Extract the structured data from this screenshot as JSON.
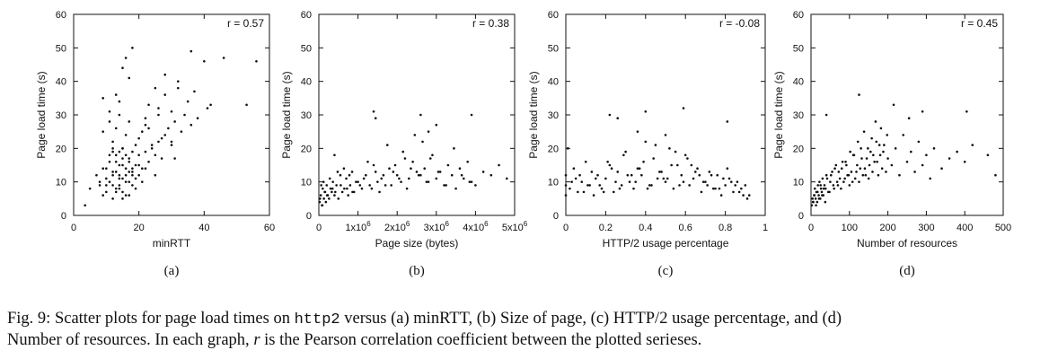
{
  "caption": {
    "prefix": "Fig. 9: Scatter plots for page load times on ",
    "code": "http2",
    "line1_rest": " versus (a) minRTT, (b) Size of page, (c) HTTP/2 usage percentage, and (d)",
    "line2_start": "Number of resources. In each graph, ",
    "var": "r",
    "line2_end": " is the Pearson correlation coefficient between the plotted serieses."
  },
  "chart_data": [
    {
      "type": "scatter",
      "panel": "(a)",
      "xlabel": "minRTT",
      "ylabel": "Page load time (s)",
      "xlim": [
        0,
        60
      ],
      "ylim": [
        0,
        60
      ],
      "xticks": [
        "0",
        "20",
        "40",
        "60"
      ],
      "xtick_values": [
        0,
        20,
        40,
        60
      ],
      "yticks": [
        "0",
        "10",
        "20",
        "30",
        "40",
        "50",
        "60"
      ],
      "ytick_values": [
        0,
        10,
        20,
        30,
        40,
        50,
        60
      ],
      "annotation": "r = 0.57",
      "x": [
        3.5,
        5,
        7,
        8,
        9,
        9,
        10,
        10,
        11,
        11,
        12,
        12,
        12,
        13,
        13,
        13,
        14,
        14,
        14,
        15,
        15,
        15,
        15,
        16,
        16,
        16,
        17,
        17,
        17,
        18,
        18,
        18,
        19,
        19,
        19,
        20,
        20,
        21,
        21,
        22,
        22,
        23,
        23,
        24,
        25,
        25,
        26,
        26,
        27,
        28,
        28,
        29,
        30,
        30,
        31,
        32,
        33,
        34,
        35,
        36,
        37,
        38,
        40,
        41,
        42,
        46,
        53,
        56,
        8,
        9,
        10,
        11,
        12,
        13,
        14,
        15,
        16,
        17,
        18,
        13,
        14,
        15,
        16,
        17,
        12,
        19,
        20,
        22,
        24,
        14,
        15,
        17,
        13,
        16,
        18,
        22,
        26,
        28,
        32,
        36,
        9,
        11,
        10,
        12,
        14,
        16,
        18,
        21,
        25,
        30,
        15,
        13,
        17,
        12,
        20,
        23,
        27,
        31,
        11,
        14
      ],
      "y": [
        3,
        8,
        12,
        9,
        6,
        35,
        7,
        14,
        10,
        18,
        5,
        13,
        22,
        8,
        16,
        26,
        9,
        12,
        30,
        7,
        11,
        15,
        20,
        6,
        14,
        24,
        10,
        17,
        28,
        9,
        13,
        19,
        8,
        15,
        21,
        12,
        18,
        10,
        25,
        14,
        29,
        16,
        33,
        20,
        18,
        38,
        22,
        32,
        17,
        24,
        36,
        26,
        21,
        31,
        28,
        40,
        25,
        30,
        34,
        27,
        37,
        29,
        46,
        32,
        33,
        47,
        33,
        46,
        10,
        14,
        11,
        16,
        12,
        13,
        15,
        17,
        18,
        16,
        14,
        18,
        19,
        20,
        12,
        13,
        9,
        11,
        23,
        19,
        21,
        34,
        44,
        41,
        36,
        47,
        50,
        27,
        30,
        42,
        38,
        49,
        25,
        31,
        9,
        19,
        8,
        10,
        12,
        14,
        12,
        22,
        5,
        7,
        6,
        20,
        15,
        26,
        23,
        17,
        28,
        11
      ]
    },
    {
      "type": "scatter",
      "panel": "(b)",
      "xlabel": "Page size (bytes)",
      "ylabel": "Page load time (s)",
      "xlim": [
        0,
        5000000
      ],
      "ylim": [
        0,
        60
      ],
      "xticks": [
        "0",
        "1x10",
        "2x10",
        "3x10",
        "4x10",
        "5x10"
      ],
      "xtick_exponent": "6",
      "xtick_values": [
        0,
        1000000,
        2000000,
        3000000,
        4000000,
        5000000
      ],
      "yticks": [
        "0",
        "10",
        "20",
        "30",
        "40",
        "50",
        "60"
      ],
      "ytick_values": [
        0,
        10,
        20,
        30,
        40,
        50,
        60
      ],
      "annotation": "r = 0.38",
      "x": [
        20000,
        50000,
        80000,
        100000,
        130000,
        150000,
        180000,
        200000,
        230000,
        260000,
        300000,
        330000,
        360000,
        400000,
        450000,
        500000,
        550000,
        600000,
        650000,
        700000,
        750000,
        800000,
        850000,
        900000,
        1000000,
        1100000,
        1200000,
        1300000,
        1400000,
        1500000,
        1600000,
        1700000,
        1800000,
        1900000,
        2000000,
        2100000,
        2200000,
        2300000,
        2400000,
        2500000,
        2600000,
        2700000,
        2800000,
        2900000,
        3000000,
        3100000,
        3200000,
        3300000,
        3400000,
        3500000,
        3600000,
        3700000,
        3800000,
        3900000,
        4000000,
        4200000,
        4400000,
        4600000,
        4800000,
        30000,
        60000,
        90000,
        120000,
        160000,
        210000,
        280000,
        350000,
        420000,
        480000,
        560000,
        640000,
        720000,
        780000,
        860000,
        950000,
        1050000,
        1150000,
        1250000,
        1350000,
        1450000,
        1550000,
        1650000,
        1750000,
        1850000,
        1950000,
        2050000,
        2150000,
        2250000,
        2350000,
        2450000,
        2550000,
        2650000,
        2750000,
        2850000,
        3050000,
        3250000,
        3450000,
        3650000,
        3850000,
        1400000,
        1450000,
        2600000,
        3000000,
        3900000,
        2800000,
        400000
      ],
      "y": [
        4,
        6,
        3,
        8,
        5,
        7,
        4,
        9,
        6,
        5,
        8,
        7,
        10,
        6,
        9,
        5,
        12,
        7,
        8,
        11,
        6,
        9,
        13,
        7,
        10,
        8,
        12,
        9,
        15,
        10,
        11,
        9,
        14,
        13,
        12,
        10,
        17,
        11,
        16,
        13,
        12,
        14,
        10,
        18,
        11,
        13,
        9,
        15,
        12,
        8,
        14,
        11,
        16,
        10,
        9,
        13,
        12,
        15,
        11,
        5,
        9,
        3,
        10,
        7,
        6,
        11,
        8,
        7,
        13,
        9,
        14,
        8,
        12,
        7,
        10,
        9,
        11,
        16,
        8,
        13,
        7,
        12,
        21,
        9,
        15,
        11,
        19,
        8,
        14,
        24,
        12,
        22,
        10,
        17,
        13,
        9,
        20,
        12,
        10,
        31,
        29,
        30,
        27,
        30,
        25,
        18
      ]
    },
    {
      "type": "scatter",
      "panel": "(c)",
      "xlabel": "HTTP/2 usage percentage",
      "ylabel": "Page load time (s)",
      "xlim": [
        0,
        1
      ],
      "ylim": [
        0,
        60
      ],
      "xticks": [
        "0",
        "0.2",
        "0.4",
        "0.6",
        "0.8",
        "1"
      ],
      "xtick_values": [
        0,
        0.2,
        0.4,
        0.6,
        0.8,
        1
      ],
      "yticks": [
        "0",
        "10",
        "20",
        "30",
        "40",
        "50",
        "60"
      ],
      "ytick_values": [
        0,
        10,
        20,
        30,
        40,
        50,
        60
      ],
      "annotation": "r = -0.08",
      "x": [
        0,
        0,
        0,
        0.02,
        0.04,
        0.06,
        0.08,
        0.1,
        0.12,
        0.14,
        0.16,
        0.18,
        0.2,
        0.22,
        0.24,
        0.26,
        0.28,
        0.3,
        0.32,
        0.34,
        0.36,
        0.38,
        0.4,
        0.42,
        0.44,
        0.46,
        0.48,
        0.5,
        0.52,
        0.54,
        0.56,
        0.58,
        0.6,
        0.62,
        0.64,
        0.66,
        0.68,
        0.7,
        0.72,
        0.74,
        0.76,
        0.78,
        0.8,
        0.82,
        0.84,
        0.86,
        0.88,
        0.9,
        0.92,
        0.01,
        0.05,
        0.09,
        0.13,
        0.17,
        0.21,
        0.25,
        0.29,
        0.33,
        0.37,
        0.41,
        0.45,
        0.49,
        0.53,
        0.57,
        0.61,
        0.65,
        0.69,
        0.73,
        0.77,
        0.81,
        0.85,
        0.89,
        0.03,
        0.07,
        0.11,
        0.15,
        0.19,
        0.23,
        0.27,
        0.31,
        0.35,
        0.39,
        0.43,
        0.47,
        0.51,
        0.55,
        0.59,
        0.63,
        0.67,
        0.71,
        0.75,
        0.79,
        0.83,
        0.87,
        0.91,
        0.22,
        0.26,
        0.4,
        0.59,
        0.81,
        0.36,
        0.5
      ],
      "y": [
        6,
        9,
        12,
        8,
        14,
        7,
        10,
        16,
        9,
        6,
        12,
        8,
        11,
        15,
        7,
        13,
        9,
        19,
        10,
        8,
        14,
        12,
        22,
        9,
        17,
        11,
        13,
        10,
        20,
        8,
        15,
        12,
        18,
        9,
        11,
        14,
        7,
        10,
        13,
        8,
        12,
        6,
        9,
        11,
        7,
        10,
        8,
        9,
        6,
        20,
        11,
        7,
        13,
        9,
        16,
        10,
        18,
        12,
        14,
        8,
        21,
        11,
        15,
        9,
        17,
        13,
        10,
        12,
        8,
        14,
        9,
        6,
        10,
        12,
        9,
        11,
        7,
        14,
        8,
        12,
        10,
        16,
        9,
        13,
        11,
        19,
        10,
        15,
        12,
        9,
        8,
        11,
        10,
        7,
        5,
        30,
        29,
        31,
        32,
        28,
        25,
        24
      ]
    },
    {
      "type": "scatter",
      "panel": "(d)",
      "xlabel": "Number of resources",
      "ylabel": "Page load time (s)",
      "xlim": [
        0,
        500
      ],
      "ylim": [
        0,
        60
      ],
      "xticks": [
        "0",
        "100",
        "200",
        "300",
        "400",
        "500"
      ],
      "xtick_values": [
        0,
        100,
        200,
        300,
        400,
        500
      ],
      "yticks": [
        "0",
        "10",
        "20",
        "30",
        "40",
        "50",
        "60"
      ],
      "ytick_values": [
        0,
        10,
        20,
        30,
        40,
        50,
        60
      ],
      "annotation": "r = 0.45",
      "x": [
        2,
        4,
        6,
        8,
        10,
        12,
        14,
        16,
        18,
        20,
        22,
        24,
        26,
        28,
        30,
        32,
        35,
        38,
        40,
        45,
        50,
        55,
        60,
        65,
        70,
        75,
        80,
        85,
        90,
        95,
        100,
        105,
        110,
        115,
        120,
        125,
        130,
        135,
        140,
        145,
        150,
        155,
        160,
        165,
        170,
        175,
        180,
        185,
        190,
        195,
        200,
        210,
        220,
        230,
        240,
        250,
        260,
        270,
        280,
        290,
        300,
        310,
        320,
        340,
        360,
        380,
        400,
        420,
        460,
        480,
        5,
        9,
        13,
        17,
        21,
        25,
        29,
        33,
        37,
        42,
        48,
        52,
        58,
        62,
        68,
        72,
        78,
        82,
        88,
        92,
        98,
        102,
        108,
        112,
        118,
        122,
        128,
        132,
        138,
        142,
        148,
        152,
        158,
        162,
        168,
        172,
        178,
        182,
        188,
        198,
        125,
        215,
        290,
        405,
        255,
        40
      ],
      "y": [
        3,
        5,
        4,
        6,
        8,
        5,
        7,
        4,
        9,
        6,
        10,
        5,
        8,
        7,
        11,
        6,
        9,
        8,
        12,
        7,
        10,
        13,
        8,
        15,
        9,
        11,
        14,
        10,
        16,
        12,
        9,
        13,
        18,
        11,
        15,
        10,
        20,
        12,
        14,
        17,
        11,
        19,
        13,
        16,
        22,
        12,
        18,
        14,
        21,
        13,
        17,
        15,
        20,
        12,
        24,
        16,
        19,
        13,
        22,
        15,
        18,
        11,
        20,
        14,
        17,
        19,
        16,
        21,
        18,
        12,
        4,
        6,
        3,
        7,
        5,
        9,
        6,
        8,
        4,
        11,
        7,
        12,
        9,
        14,
        10,
        13,
        8,
        16,
        11,
        15,
        12,
        19,
        10,
        18,
        13,
        22,
        14,
        17,
        25,
        12,
        20,
        15,
        23,
        18,
        28,
        16,
        21,
        26,
        19,
        24,
        36,
        33,
        31,
        31,
        29,
        30
      ]
    }
  ]
}
